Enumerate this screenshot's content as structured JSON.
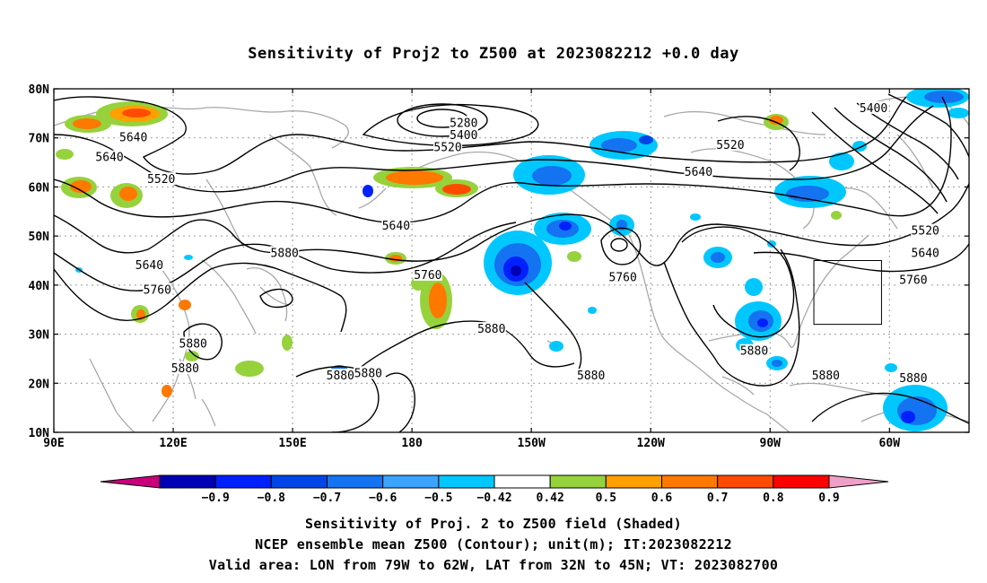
{
  "title": "Sensitivity of Proj2 to Z500 at 2023082212 +0.0 day",
  "footer": {
    "line1": "Sensitivity of Proj. 2 to Z500 field (Shaded)",
    "line2": "NCEP ensemble mean Z500 (Contour); unit(m); IT:2023082212",
    "line3": "Valid area: LON from 79W to 62W, LAT from 32N to 45N; VT: 2023082700"
  },
  "map": {
    "lat_ticks": [
      "80N",
      "70N",
      "60N",
      "50N",
      "40N",
      "30N",
      "20N",
      "10N"
    ],
    "lon_ticks": [
      "90E",
      "120E",
      "150E",
      "180",
      "150W",
      "120W",
      "90W",
      "60W"
    ],
    "lat_values": [
      80,
      70,
      60,
      50,
      40,
      30,
      20,
      10
    ],
    "lon_values": [
      90,
      120,
      150,
      180,
      210,
      240,
      270,
      300
    ],
    "lon_range": [
      90,
      320
    ],
    "lat_range": [
      10,
      80
    ],
    "coast_color": "#a8a8a8",
    "valid_box": {
      "lon": [
        281,
        298
      ],
      "lat": [
        32,
        45
      ]
    },
    "contour_labels": [
      {
        "text": "5280",
        "lon": 193,
        "lat": 73
      },
      {
        "text": "5400",
        "lon": 193,
        "lat": 70.5
      },
      {
        "text": "5400",
        "lon": 296,
        "lat": 76
      },
      {
        "text": "5520",
        "lon": 189,
        "lat": 68
      },
      {
        "text": "5520",
        "lon": 117,
        "lat": 61.5
      },
      {
        "text": "5520",
        "lon": 260,
        "lat": 68.5
      },
      {
        "text": "5520",
        "lon": 309,
        "lat": 51
      },
      {
        "text": "5640",
        "lon": 110,
        "lat": 70
      },
      {
        "text": "5640",
        "lon": 104,
        "lat": 66
      },
      {
        "text": "5640",
        "lon": 252,
        "lat": 63
      },
      {
        "text": "5640",
        "lon": 176,
        "lat": 52
      },
      {
        "text": "5640",
        "lon": 114,
        "lat": 44
      },
      {
        "text": "5640",
        "lon": 309,
        "lat": 46.5
      },
      {
        "text": "5760",
        "lon": 116,
        "lat": 39
      },
      {
        "text": "5760",
        "lon": 184,
        "lat": 42
      },
      {
        "text": "5760",
        "lon": 233,
        "lat": 41.5
      },
      {
        "text": "5760",
        "lon": 306,
        "lat": 41
      },
      {
        "text": "5880",
        "lon": 148,
        "lat": 46.5
      },
      {
        "text": "5880",
        "lon": 125,
        "lat": 28
      },
      {
        "text": "5880",
        "lon": 123,
        "lat": 23
      },
      {
        "text": "5880",
        "lon": 162,
        "lat": 21.5
      },
      {
        "text": "5880",
        "lon": 169,
        "lat": 22
      },
      {
        "text": "5880",
        "lon": 200,
        "lat": 31
      },
      {
        "text": "5880",
        "lon": 225,
        "lat": 21.5
      },
      {
        "text": "5880",
        "lon": 266,
        "lat": 26.5
      },
      {
        "text": "5880",
        "lon": 284,
        "lat": 21.5
      },
      {
        "text": "5880",
        "lon": 306,
        "lat": 21
      }
    ]
  },
  "colorbar": {
    "labels": [
      "−0.9",
      "−0.8",
      "−0.7",
      "−0.6",
      "−0.5",
      "−0.42",
      "0.42",
      "0.5",
      "0.6",
      "0.7",
      "0.8",
      "0.9"
    ],
    "colors": [
      "#c8007c",
      "#0000b4",
      "#0020ff",
      "#0046e6",
      "#1473f0",
      "#3ca4ff",
      "#00c8ff",
      "#ffffff",
      "#96d23c",
      "#ffa000",
      "#ff7800",
      "#ff4b00",
      "#ff0000",
      "#f0a0c8"
    ]
  }
}
